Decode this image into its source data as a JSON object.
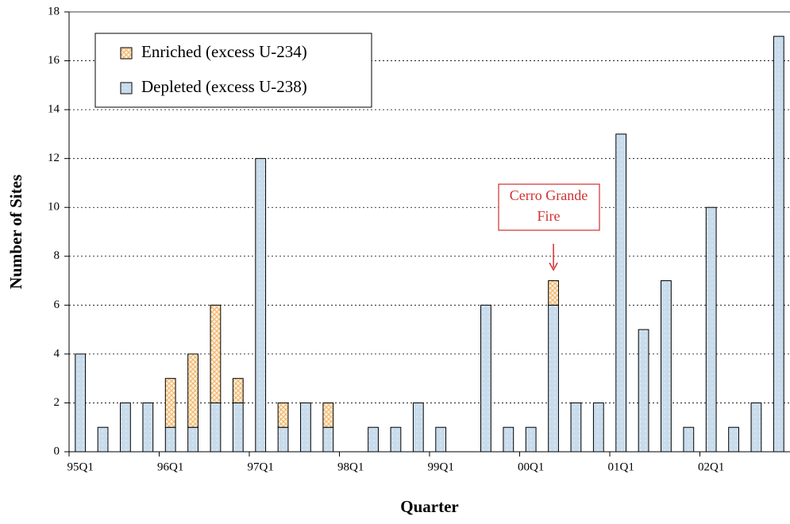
{
  "chart_data": {
    "type": "stacked_bar",
    "xlabel": "Quarter",
    "ylabel": "Number of Sites",
    "categories": [
      "95Q1",
      null,
      null,
      null,
      "96Q1",
      null,
      null,
      null,
      "97Q1",
      null,
      null,
      null,
      "98Q1",
      null,
      null,
      null,
      "99Q1",
      null,
      null,
      null,
      "00Q1",
      null,
      null,
      null,
      "01Q1",
      null,
      null,
      null,
      "02Q1",
      null,
      null,
      null
    ],
    "series": [
      {
        "name": "Depleted (excess U-238)",
        "color": "#c9dcec",
        "values": [
          4,
          1,
          2,
          2,
          1,
          1,
          2,
          2,
          12,
          1,
          2,
          1,
          0,
          1,
          1,
          2,
          1,
          0,
          6,
          1,
          1,
          6,
          2,
          2,
          13,
          5,
          7,
          1,
          10,
          1,
          2,
          17
        ]
      },
      {
        "name": "Enriched (excess U-234)",
        "color": "#f2b872",
        "values": [
          0,
          0,
          0,
          0,
          2,
          3,
          4,
          1,
          0,
          1,
          0,
          1,
          0,
          0,
          0,
          0,
          0,
          0,
          0,
          0,
          0,
          1,
          0,
          0,
          0,
          0,
          0,
          0,
          0,
          0,
          0,
          0
        ]
      }
    ],
    "annotation": [
      "Cerro Grande",
      "Fire"
    ],
    "ylim": [
      0,
      18
    ],
    "yticks": [
      0,
      2,
      4,
      6,
      8,
      10,
      12,
      14,
      16,
      18
    ],
    "grid": true,
    "legend": "upper left"
  }
}
